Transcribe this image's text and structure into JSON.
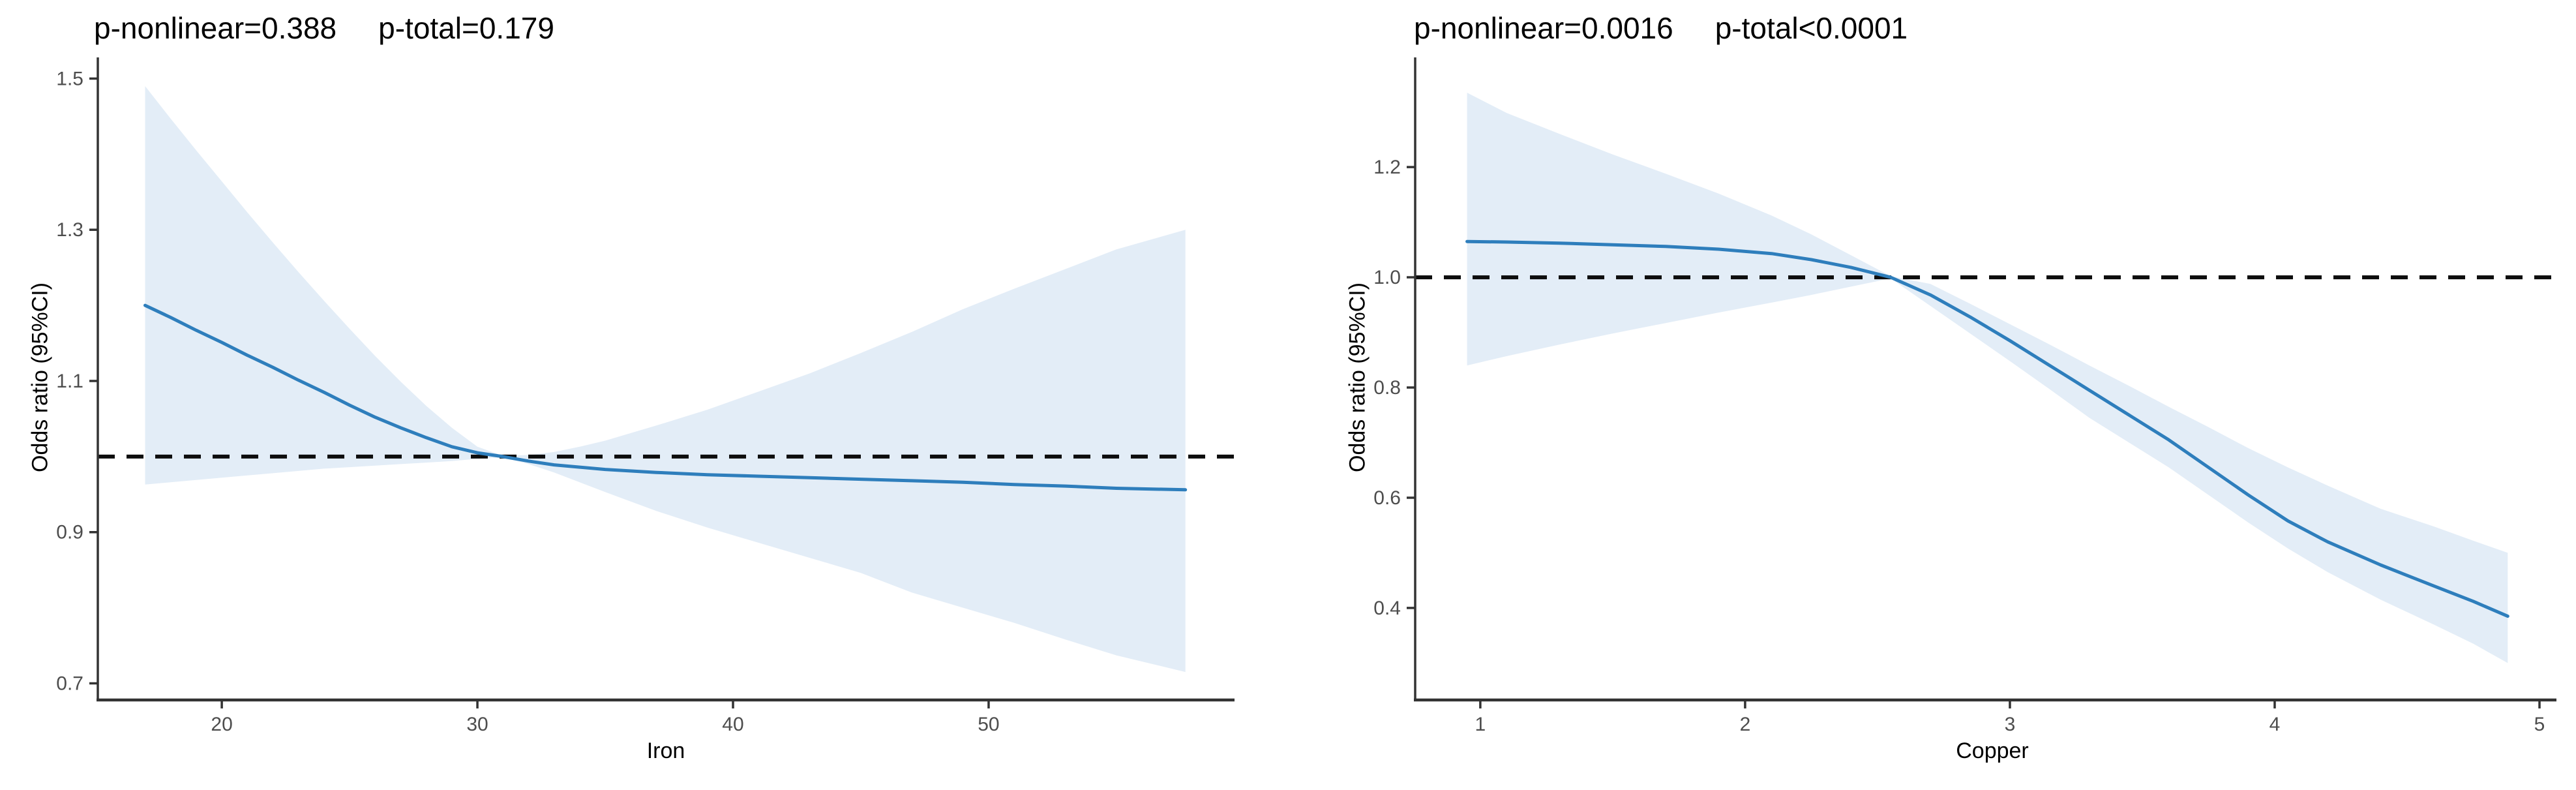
{
  "figure": {
    "background": "#ffffff"
  },
  "colors": {
    "curve": "#2e7ebc",
    "band": "#e3edf7",
    "ref_dash": "#0d0d0d",
    "axis": "#333333",
    "tick_label": "#4d4d4d",
    "text": "#000000"
  },
  "chart_data": [
    {
      "type": "line",
      "title": {
        "p_nonlinear": "p-nonlinear=0.388",
        "p_total": "p-total=0.179"
      },
      "xlabel": "Iron",
      "ylabel": "Odds ratio (95%CI)",
      "xlim": [
        15.15,
        59.62
      ],
      "ylim": [
        0.678,
        1.528
      ],
      "xticks": [
        20,
        30,
        40,
        50
      ],
      "yticks": [
        0.7,
        0.9,
        1.1,
        1.3,
        1.5
      ],
      "reference_line": 1.0,
      "grid": false,
      "legend": "none",
      "series": {
        "name": "odds-ratio-with-95ci",
        "x": [
          17,
          18,
          19,
          20,
          21,
          22,
          23,
          24,
          25,
          26,
          27,
          28,
          29,
          30,
          31,
          32,
          33,
          34,
          35,
          37,
          39,
          41,
          43,
          45,
          47,
          49,
          51,
          53,
          55,
          57.7
        ],
        "or": [
          1.2,
          1.184,
          1.167,
          1.151,
          1.134,
          1.118,
          1.101,
          1.085,
          1.068,
          1.052,
          1.038,
          1.025,
          1.013,
          1.005,
          1.0,
          0.994,
          0.989,
          0.986,
          0.983,
          0.979,
          0.976,
          0.974,
          0.972,
          0.97,
          0.968,
          0.966,
          0.963,
          0.961,
          0.958,
          0.956
        ],
        "lo": [
          0.963,
          0.966,
          0.969,
          0.972,
          0.975,
          0.978,
          0.981,
          0.984,
          0.986,
          0.988,
          0.99,
          0.992,
          0.994,
          0.997,
          0.999,
          0.99,
          0.979,
          0.966,
          0.953,
          0.928,
          0.906,
          0.886,
          0.866,
          0.846,
          0.82,
          0.8,
          0.78,
          0.758,
          0.737,
          0.715
        ],
        "hi": [
          1.49,
          1.447,
          1.405,
          1.364,
          1.323,
          1.283,
          1.244,
          1.206,
          1.169,
          1.133,
          1.099,
          1.067,
          1.038,
          1.013,
          1.001,
          1.002,
          1.006,
          1.013,
          1.021,
          1.041,
          1.062,
          1.086,
          1.11,
          1.137,
          1.165,
          1.195,
          1.222,
          1.248,
          1.274,
          1.3
        ]
      }
    },
    {
      "type": "line",
      "title": {
        "p_nonlinear": "p-nonlinear=0.0016",
        "p_total": "p-total<0.0001"
      },
      "xlabel": "Copper",
      "ylabel": "Odds ratio (95%CI)",
      "xlim": [
        0.754,
        5.064
      ],
      "ylim": [
        0.233,
        1.399
      ],
      "xticks": [
        1,
        2,
        3,
        4,
        5
      ],
      "yticks": [
        0.4,
        0.6,
        0.8,
        1.0,
        1.2
      ],
      "reference_line": 1.0,
      "grid": false,
      "legend": "none",
      "series": {
        "name": "odds-ratio-with-95ci",
        "x": [
          0.95,
          1.1,
          1.3,
          1.5,
          1.7,
          1.9,
          2.1,
          2.25,
          2.4,
          2.55,
          2.7,
          2.85,
          3.0,
          3.15,
          3.3,
          3.45,
          3.6,
          3.75,
          3.9,
          4.05,
          4.2,
          4.4,
          4.6,
          4.75,
          4.88
        ],
        "or": [
          1.065,
          1.064,
          1.062,
          1.059,
          1.056,
          1.051,
          1.043,
          1.032,
          1.018,
          1.0,
          0.968,
          0.928,
          0.885,
          0.84,
          0.795,
          0.75,
          0.705,
          0.655,
          0.605,
          0.558,
          0.52,
          0.478,
          0.44,
          0.412,
          0.385
        ],
        "lo": [
          0.84,
          0.857,
          0.878,
          0.898,
          0.917,
          0.936,
          0.954,
          0.968,
          0.983,
          0.998,
          0.948,
          0.898,
          0.848,
          0.797,
          0.745,
          0.7,
          0.655,
          0.605,
          0.555,
          0.508,
          0.465,
          0.415,
          0.37,
          0.335,
          0.3
        ],
        "hi": [
          1.335,
          1.298,
          1.26,
          1.223,
          1.188,
          1.152,
          1.112,
          1.078,
          1.04,
          1.002,
          0.988,
          0.952,
          0.915,
          0.878,
          0.84,
          0.803,
          0.765,
          0.728,
          0.69,
          0.655,
          0.622,
          0.58,
          0.548,
          0.522,
          0.5
        ]
      }
    }
  ]
}
